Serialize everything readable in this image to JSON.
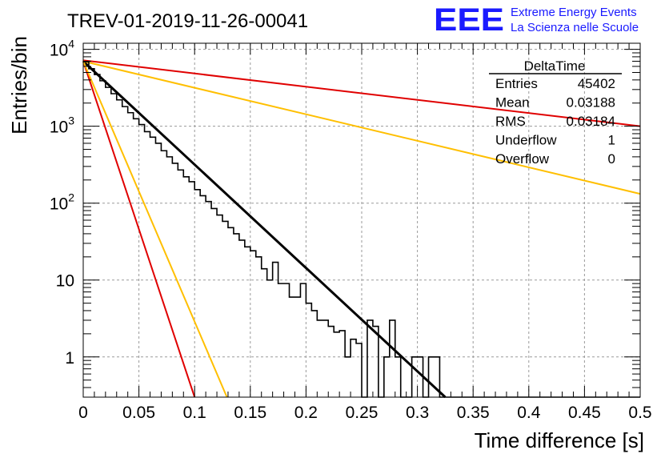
{
  "title": "TREV-01-2019-11-26-00041",
  "logo": {
    "letters": "EEE",
    "line1": "Extreme Energy Events",
    "line2": "La Scienza nelle Scuole",
    "color": "#1a1aff"
  },
  "stats_box": {
    "title": "DeltaTime",
    "rows": [
      {
        "label": "Entries",
        "value": "45402"
      },
      {
        "label": "Mean",
        "value": "0.03188"
      },
      {
        "label": "RMS",
        "value": "0.03184"
      },
      {
        "label": "Underflow",
        "value": "1"
      },
      {
        "label": "Overflow",
        "value": "0"
      }
    ]
  },
  "chart_data": {
    "type": "line",
    "title": "TREV-01-2019-11-26-00041",
    "xlabel": "Time difference [s]",
    "ylabel": "Entries/bin",
    "xlim": [
      0,
      0.5
    ],
    "ylim": [
      0.3,
      12000
    ],
    "yscale": "log",
    "grid": true,
    "x_ticks": [
      0,
      0.05,
      0.1,
      0.15,
      0.2,
      0.25,
      0.3,
      0.35,
      0.4,
      0.45,
      0.5
    ],
    "x_tick_labels": [
      "0",
      "0.05",
      "0.1",
      "0.15",
      "0.2",
      "0.25",
      "0.3",
      "0.35",
      "0.4",
      "0.45",
      "0.5"
    ],
    "y_ticks": [
      1,
      10,
      100,
      1000,
      10000
    ],
    "y_tick_labels": [
      {
        "base": "1",
        "exp": ""
      },
      {
        "base": "10",
        "exp": ""
      },
      {
        "base": "10",
        "exp": "2"
      },
      {
        "base": "10",
        "exp": "3"
      },
      {
        "base": "10",
        "exp": "4"
      }
    ],
    "histogram": {
      "bin_width": 0.005,
      "bin_start": 0,
      "color": "#000000",
      "counts": [
        6900,
        5600,
        4700,
        3900,
        3200,
        2650,
        2200,
        1800,
        1500,
        1250,
        1050,
        850,
        720,
        600,
        480,
        400,
        330,
        270,
        220,
        190,
        150,
        125,
        105,
        85,
        70,
        58,
        48,
        40,
        33,
        27,
        24,
        20,
        14,
        10,
        17,
        9,
        9,
        6,
        6,
        9,
        5,
        4,
        3,
        3,
        2.5,
        2.1,
        2.2,
        1,
        1.7,
        1.5,
        0,
        3,
        2.5,
        0,
        1,
        3,
        1,
        0,
        0,
        1,
        1,
        0,
        1,
        1,
        0,
        0,
        0,
        0,
        0,
        0,
        0,
        0,
        0,
        0,
        0,
        0,
        0,
        0,
        0,
        0,
        0,
        0,
        0,
        0,
        0,
        0,
        0,
        0,
        0,
        0,
        0,
        0,
        0,
        0,
        0,
        0,
        0,
        0,
        0,
        0
      ]
    },
    "fits": [
      {
        "color": "#000000",
        "x": [
          0,
          0.325
        ],
        "y": [
          7000,
          0.3
        ]
      },
      {
        "color": "#e00000",
        "x": [
          0,
          0.5
        ],
        "y": [
          7200,
          1000
        ]
      },
      {
        "color": "#ffbf00",
        "x": [
          0,
          0.5
        ],
        "y": [
          7000,
          132
        ]
      },
      {
        "color": "#e00000",
        "x": [
          0,
          0.1
        ],
        "y": [
          7000,
          0.3
        ]
      },
      {
        "color": "#ffbf00",
        "x": [
          0,
          0.129
        ],
        "y": [
          7000,
          0.3
        ]
      }
    ]
  }
}
